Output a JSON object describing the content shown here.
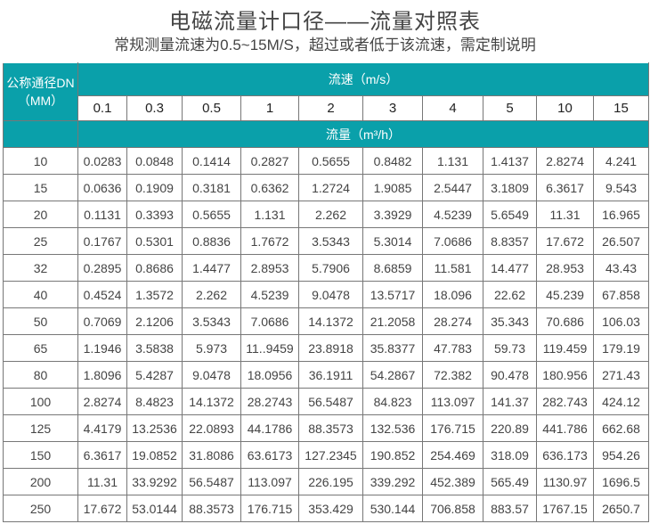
{
  "title": "电磁流量计口径——流量对照表",
  "subtitle": "常规测量流速为0.5~15M/S，超过或者低于该流速，需定制说明",
  "table": {
    "dn_header_line1": "公称通径DN",
    "dn_header_line2": "（MM）",
    "speed_header": "流速（m/s）",
    "speeds": [
      "0.1",
      "0.3",
      "0.5",
      "1",
      "2",
      "3",
      "4",
      "5",
      "10",
      "15"
    ],
    "flow_header": "流量（m³/h）",
    "header_color": "#0aa0aa",
    "rows": [
      {
        "dn": "10",
        "values": [
          "0.0283",
          "0.0848",
          "0.1414",
          "0.2827",
          "0.5655",
          "0.8482",
          "1.131",
          "1.4137",
          "2.8274",
          "4.241"
        ]
      },
      {
        "dn": "15",
        "values": [
          "0.0636",
          "0.1909",
          "0.3181",
          "0.6362",
          "1.2724",
          "1.9085",
          "2.5447",
          "3.1809",
          "6.3617",
          "9.543"
        ]
      },
      {
        "dn": "20",
        "values": [
          "0.1131",
          "0.3393",
          "0.5655",
          "1.131",
          "2.262",
          "3.3929",
          "4.5239",
          "5.6549",
          "11.31",
          "16.965"
        ]
      },
      {
        "dn": "25",
        "values": [
          "0.1767",
          "0.5301",
          "0.8836",
          "1.7672",
          "3.5343",
          "5.3014",
          "7.0686",
          "8.8357",
          "17.672",
          "26.507"
        ]
      },
      {
        "dn": "32",
        "values": [
          "0.2895",
          "0.8686",
          "1.4477",
          "2.8953",
          "5.7906",
          "8.6859",
          "11.581",
          "14.477",
          "28.953",
          "43.43"
        ]
      },
      {
        "dn": "40",
        "values": [
          "0.4524",
          "1.3572",
          "2.262",
          "4.5239",
          "9.0478",
          "13.5717",
          "18.096",
          "22.62",
          "45.239",
          "67.858"
        ]
      },
      {
        "dn": "50",
        "values": [
          "0.7069",
          "2.1206",
          "3.5343",
          "7.0686",
          "14.1372",
          "21.2058",
          "28.274",
          "35.343",
          "70.686",
          "106.03"
        ]
      },
      {
        "dn": "65",
        "values": [
          "1.1946",
          "3.5838",
          "5.973",
          "11..9459",
          "23.8918",
          "35.8377",
          "47.783",
          "59.73",
          "119.459",
          "179.19"
        ]
      },
      {
        "dn": "80",
        "values": [
          "1.8096",
          "5.4287",
          "9.0478",
          "18.0956",
          "36.1911",
          "54.2867",
          "72.382",
          "90.478",
          "180.956",
          "271.43"
        ]
      },
      {
        "dn": "100",
        "values": [
          "2.8274",
          "8.4823",
          "14.1372",
          "28.2743",
          "56.5487",
          "84.823",
          "113.097",
          "141.37",
          "282.743",
          "424.12"
        ]
      },
      {
        "dn": "125",
        "values": [
          "4.4179",
          "13.2536",
          "22.0893",
          "44.1786",
          "88.3573",
          "132.536",
          "176.715",
          "220.89",
          "441.786",
          "662.68"
        ]
      },
      {
        "dn": "150",
        "values": [
          "6.3617",
          "19.0852",
          "31.8086",
          "63.6173",
          "127.2345",
          "190.852",
          "254.469",
          "318.09",
          "636.173",
          "954.26"
        ]
      },
      {
        "dn": "200",
        "values": [
          "11.31",
          "33.9292",
          "56.5487",
          "113.097",
          "226.195",
          "339.292",
          "452.389",
          "565.49",
          "1130.97",
          "1696.5"
        ]
      },
      {
        "dn": "250",
        "values": [
          "17.672",
          "53.0144",
          "88.3573",
          "176.715",
          "353.429",
          "530.144",
          "706.858",
          "883.57",
          "1767.15",
          "2650.7"
        ]
      }
    ]
  }
}
